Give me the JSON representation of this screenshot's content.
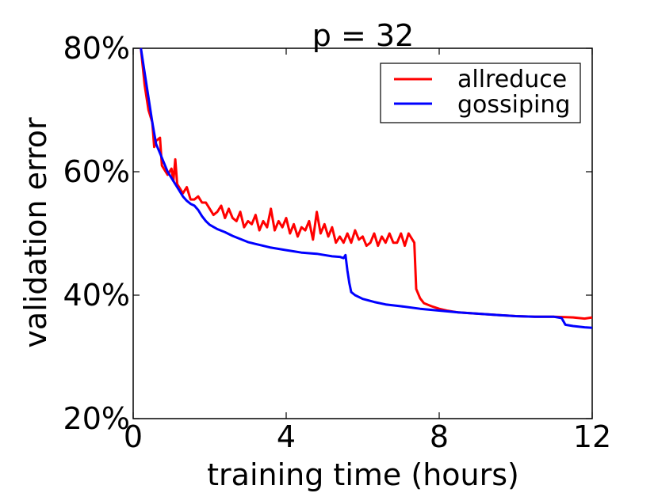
{
  "chart_data": {
    "type": "line",
    "title": "p = 32",
    "xlabel": "training time (hours)",
    "ylabel": "validation error",
    "xlim": [
      0,
      12
    ],
    "ylim": [
      20,
      80
    ],
    "xticks": [
      0,
      4,
      8,
      12
    ],
    "xtick_labels": [
      "0",
      "4",
      "8",
      "12"
    ],
    "yticks": [
      20,
      40,
      60,
      80
    ],
    "ytick_labels": [
      "20%",
      "40%",
      "60%",
      "80%"
    ],
    "grid": false,
    "legend_position": "top-right",
    "series": [
      {
        "name": "allreduce",
        "color": "#ff0000",
        "points": [
          [
            0.2,
            80
          ],
          [
            0.3,
            74
          ],
          [
            0.4,
            70
          ],
          [
            0.5,
            68
          ],
          [
            0.55,
            64
          ],
          [
            0.6,
            65
          ],
          [
            0.7,
            65.5
          ],
          [
            0.75,
            61
          ],
          [
            0.9,
            59.5
          ],
          [
            1.0,
            60.5
          ],
          [
            1.05,
            58.5
          ],
          [
            1.1,
            62
          ],
          [
            1.15,
            58
          ],
          [
            1.3,
            56.5
          ],
          [
            1.4,
            57.5
          ],
          [
            1.5,
            55.5
          ],
          [
            1.6,
            55.5
          ],
          [
            1.7,
            56
          ],
          [
            1.8,
            55
          ],
          [
            1.9,
            55
          ],
          [
            2.0,
            54
          ],
          [
            2.1,
            53
          ],
          [
            2.2,
            53.5
          ],
          [
            2.3,
            54.5
          ],
          [
            2.4,
            52.5
          ],
          [
            2.5,
            54
          ],
          [
            2.6,
            52.5
          ],
          [
            2.7,
            52
          ],
          [
            2.8,
            53.5
          ],
          [
            2.9,
            51
          ],
          [
            3.0,
            52
          ],
          [
            3.1,
            51.5
          ],
          [
            3.2,
            53
          ],
          [
            3.3,
            50.5
          ],
          [
            3.4,
            52
          ],
          [
            3.5,
            51
          ],
          [
            3.6,
            54
          ],
          [
            3.7,
            50.5
          ],
          [
            3.8,
            52
          ],
          [
            3.9,
            51
          ],
          [
            4.0,
            52.5
          ],
          [
            4.1,
            50
          ],
          [
            4.2,
            51.5
          ],
          [
            4.3,
            49.5
          ],
          [
            4.4,
            51
          ],
          [
            4.5,
            50.5
          ],
          [
            4.6,
            52
          ],
          [
            4.7,
            49
          ],
          [
            4.8,
            53.5
          ],
          [
            4.9,
            50
          ],
          [
            5.0,
            51.5
          ],
          [
            5.1,
            49.5
          ],
          [
            5.2,
            51
          ],
          [
            5.3,
            48.5
          ],
          [
            5.4,
            49.5
          ],
          [
            5.5,
            48.5
          ],
          [
            5.6,
            50
          ],
          [
            5.7,
            48.5
          ],
          [
            5.8,
            50.5
          ],
          [
            5.9,
            49
          ],
          [
            6.0,
            49.5
          ],
          [
            6.1,
            48
          ],
          [
            6.2,
            48.5
          ],
          [
            6.3,
            50
          ],
          [
            6.4,
            48
          ],
          [
            6.5,
            49.5
          ],
          [
            6.6,
            48.5
          ],
          [
            6.7,
            50
          ],
          [
            6.8,
            48.5
          ],
          [
            6.9,
            48.5
          ],
          [
            7.0,
            50
          ],
          [
            7.1,
            48
          ],
          [
            7.2,
            50
          ],
          [
            7.3,
            49
          ],
          [
            7.35,
            48.5
          ],
          [
            7.4,
            41
          ],
          [
            7.5,
            39.5
          ],
          [
            7.6,
            38.7
          ],
          [
            7.8,
            38.2
          ],
          [
            8.0,
            37.8
          ],
          [
            8.2,
            37.5
          ],
          [
            8.5,
            37.2
          ],
          [
            9.0,
            37.0
          ],
          [
            9.5,
            36.8
          ],
          [
            10.0,
            36.6
          ],
          [
            10.5,
            36.5
          ],
          [
            11.0,
            36.5
          ],
          [
            11.5,
            36.4
          ],
          [
            11.8,
            36.2
          ],
          [
            12.0,
            36.4
          ]
        ]
      },
      {
        "name": "gossiping",
        "color": "#0000ff",
        "points": [
          [
            0.2,
            80
          ],
          [
            0.3,
            76
          ],
          [
            0.4,
            72
          ],
          [
            0.5,
            68
          ],
          [
            0.6,
            64.5
          ],
          [
            0.7,
            63
          ],
          [
            0.8,
            61.5
          ],
          [
            0.9,
            60
          ],
          [
            1.0,
            59
          ],
          [
            1.1,
            58
          ],
          [
            1.2,
            57
          ],
          [
            1.3,
            56
          ],
          [
            1.4,
            55.3
          ],
          [
            1.5,
            54.8
          ],
          [
            1.6,
            54.5
          ],
          [
            1.7,
            53.8
          ],
          [
            1.8,
            52.8
          ],
          [
            1.9,
            52
          ],
          [
            2.0,
            51.4
          ],
          [
            2.2,
            50.7
          ],
          [
            2.4,
            50.2
          ],
          [
            2.6,
            49.6
          ],
          [
            2.8,
            49.1
          ],
          [
            3.0,
            48.6
          ],
          [
            3.2,
            48.3
          ],
          [
            3.4,
            48
          ],
          [
            3.6,
            47.7
          ],
          [
            3.8,
            47.5
          ],
          [
            4.0,
            47.3
          ],
          [
            4.2,
            47.1
          ],
          [
            4.4,
            46.9
          ],
          [
            4.6,
            46.8
          ],
          [
            4.8,
            46.7
          ],
          [
            5.0,
            46.5
          ],
          [
            5.2,
            46.3
          ],
          [
            5.4,
            46.2
          ],
          [
            5.5,
            46.0
          ],
          [
            5.55,
            46.5
          ],
          [
            5.6,
            44
          ],
          [
            5.65,
            42
          ],
          [
            5.7,
            40.5
          ],
          [
            5.8,
            40.0
          ],
          [
            6.0,
            39.4
          ],
          [
            6.3,
            38.9
          ],
          [
            6.6,
            38.5
          ],
          [
            7.0,
            38.2
          ],
          [
            7.5,
            37.8
          ],
          [
            8.0,
            37.5
          ],
          [
            8.5,
            37.2
          ],
          [
            9.0,
            37.0
          ],
          [
            9.5,
            36.8
          ],
          [
            10.0,
            36.6
          ],
          [
            10.5,
            36.5
          ],
          [
            11.0,
            36.5
          ],
          [
            11.2,
            36.3
          ],
          [
            11.3,
            35.2
          ],
          [
            11.5,
            35.0
          ],
          [
            11.8,
            34.8
          ],
          [
            12.0,
            34.7
          ]
        ]
      }
    ]
  }
}
